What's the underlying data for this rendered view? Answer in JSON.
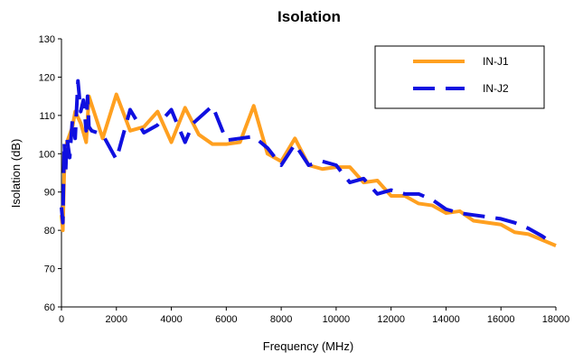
{
  "chart_data": {
    "type": "line",
    "title": "Isolation",
    "xlabel": "Frequency (MHz)",
    "ylabel": "Isolation  (dB)",
    "xlim": [
      0,
      18000
    ],
    "ylim": [
      60,
      130
    ],
    "xticks": [
      0,
      2000,
      4000,
      6000,
      8000,
      10000,
      12000,
      14000,
      16000,
      18000
    ],
    "yticks": [
      60,
      70,
      80,
      90,
      100,
      110,
      120,
      130
    ],
    "grid": false,
    "legend": "top-right",
    "series": [
      {
        "name": "IN-J1",
        "color": "#FFA020",
        "dash": "solid",
        "points": [
          [
            0,
            84
          ],
          [
            50,
            80
          ],
          [
            100,
            95
          ],
          [
            200,
            103
          ],
          [
            300,
            105
          ],
          [
            400,
            107
          ],
          [
            500,
            111
          ],
          [
            700,
            108
          ],
          [
            900,
            103
          ],
          [
            1000,
            115
          ],
          [
            1500,
            104
          ],
          [
            2000,
            115.5
          ],
          [
            2500,
            106
          ],
          [
            3000,
            107
          ],
          [
            3500,
            111
          ],
          [
            4000,
            103
          ],
          [
            4500,
            112
          ],
          [
            5000,
            105
          ],
          [
            5500,
            102.5
          ],
          [
            6000,
            102.5
          ],
          [
            6500,
            103
          ],
          [
            7000,
            112.5
          ],
          [
            7500,
            100
          ],
          [
            8000,
            98
          ],
          [
            8500,
            104
          ],
          [
            9000,
            97
          ],
          [
            9500,
            96
          ],
          [
            10000,
            96.5
          ],
          [
            10500,
            96.5
          ],
          [
            11000,
            92.5
          ],
          [
            11500,
            93
          ],
          [
            12000,
            89
          ],
          [
            12500,
            89
          ],
          [
            13000,
            87
          ],
          [
            13500,
            86.5
          ],
          [
            14000,
            84.5
          ],
          [
            14500,
            85
          ],
          [
            15000,
            82.5
          ],
          [
            15500,
            82
          ],
          [
            16000,
            81.5
          ],
          [
            16500,
            79.5
          ],
          [
            17000,
            79
          ],
          [
            17500,
            77.5
          ],
          [
            18000,
            76
          ]
        ]
      },
      {
        "name": "IN-J2",
        "color": "#1010E0",
        "dash": "dashed",
        "points": [
          [
            0,
            86
          ],
          [
            50,
            82
          ],
          [
            100,
            103
          ],
          [
            150,
            95
          ],
          [
            200,
            104
          ],
          [
            300,
            99
          ],
          [
            400,
            109
          ],
          [
            500,
            104
          ],
          [
            600,
            119
          ],
          [
            700,
            111
          ],
          [
            800,
            114
          ],
          [
            900,
            106
          ],
          [
            950,
            115
          ],
          [
            1000,
            107
          ],
          [
            1100,
            106
          ],
          [
            1500,
            105
          ],
          [
            2000,
            98.5
          ],
          [
            2500,
            111.5
          ],
          [
            3000,
            105.5
          ],
          [
            3500,
            107.5
          ],
          [
            4000,
            111.5
          ],
          [
            4200,
            108
          ],
          [
            4500,
            103
          ],
          [
            4800,
            108
          ],
          [
            5500,
            112.5
          ],
          [
            6000,
            103.5
          ],
          [
            6500,
            104
          ],
          [
            7000,
            104.5
          ],
          [
            7500,
            101.5
          ],
          [
            8000,
            97
          ],
          [
            8500,
            102.5
          ],
          [
            9000,
            97
          ],
          [
            9500,
            98
          ],
          [
            10000,
            97
          ],
          [
            10500,
            92.5
          ],
          [
            11000,
            93.5
          ],
          [
            11500,
            89.5
          ],
          [
            12000,
            90.5
          ],
          [
            12500,
            89.5
          ],
          [
            13000,
            89.5
          ],
          [
            13500,
            88
          ],
          [
            14000,
            85.5
          ],
          [
            14500,
            84.5
          ],
          [
            15000,
            84
          ],
          [
            15500,
            83.5
          ],
          [
            16000,
            83
          ],
          [
            16500,
            82
          ],
          [
            17000,
            80.5
          ],
          [
            17500,
            78.5
          ],
          [
            17700,
            77.5
          ]
        ]
      }
    ]
  }
}
